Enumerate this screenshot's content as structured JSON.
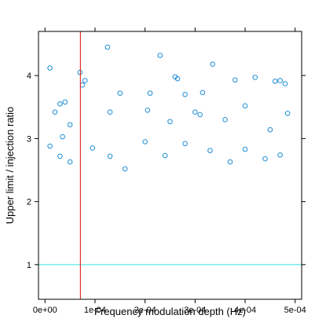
{
  "chart_data": {
    "type": "scatter",
    "title": "",
    "xlabel": "Frequency modulation depth (Hz)",
    "ylabel": "Upper limit / injection ratio",
    "xlim": [
      -1.3e-05,
      0.000513
    ],
    "ylim": [
      0.45,
      4.7
    ],
    "x_ticks": [
      0,
      0.0001,
      0.0002,
      0.0003,
      0.0004,
      0.0005
    ],
    "x_tick_labels": [
      "0e+00",
      "1e-04",
      "2e-04",
      "3e-04",
      "4e-04",
      "5e-04"
    ],
    "y_ticks": [
      1,
      2,
      3,
      4
    ],
    "y_tick_labels": [
      "1",
      "2",
      "3",
      "4"
    ],
    "hline": {
      "y": 1,
      "color": "#5fe8e8"
    },
    "vline": {
      "x": 7.08e-05,
      "color": "#e0302a"
    },
    "point_color": "#1f8fd6",
    "grid": false,
    "series": [
      {
        "values": [
          [
            1e-05,
            4.12
          ],
          [
            2e-05,
            3.42
          ],
          [
            3e-05,
            3.55
          ],
          [
            4e-05,
            3.58
          ],
          [
            7e-05,
            4.05
          ],
          [
            7.5e-05,
            3.85
          ],
          [
            8e-05,
            3.92
          ],
          [
            0.000125,
            4.45
          ],
          [
            0.00015,
            3.72
          ],
          [
            0.00021,
            3.72
          ],
          [
            0.00023,
            4.32
          ],
          [
            0.00026,
            3.98
          ],
          [
            0.000265,
            3.95
          ],
          [
            0.00028,
            3.7
          ],
          [
            0.000315,
            3.73
          ],
          [
            0.000335,
            4.18
          ],
          [
            0.00038,
            3.93
          ],
          [
            0.00042,
            3.97
          ],
          [
            0.00046,
            3.91
          ],
          [
            0.00047,
            3.92
          ],
          [
            0.00048,
            3.87
          ],
          [
            0.000485,
            3.4
          ],
          [
            0.00013,
            3.42
          ],
          [
            0.000205,
            3.45
          ],
          [
            0.00025,
            3.27
          ],
          [
            0.00036,
            3.3
          ],
          [
            0.0003,
            3.42
          ],
          [
            0.00031,
            3.38
          ],
          [
            0.0004,
            3.52
          ],
          [
            0.00045,
            3.14
          ],
          [
            3.5e-05,
            3.03
          ],
          [
            5e-05,
            3.22
          ],
          [
            1e-05,
            2.88
          ],
          [
            3e-05,
            2.72
          ],
          [
            5e-05,
            2.63
          ],
          [
            9.5e-05,
            2.85
          ],
          [
            0.00013,
            2.72
          ],
          [
            0.00016,
            2.52
          ],
          [
            0.0002,
            2.95
          ],
          [
            0.00024,
            2.73
          ],
          [
            0.00028,
            2.92
          ],
          [
            0.00033,
            2.81
          ],
          [
            0.00037,
            2.63
          ],
          [
            0.0004,
            2.83
          ],
          [
            0.00044,
            2.68
          ],
          [
            0.00047,
            2.74
          ]
        ]
      }
    ]
  }
}
